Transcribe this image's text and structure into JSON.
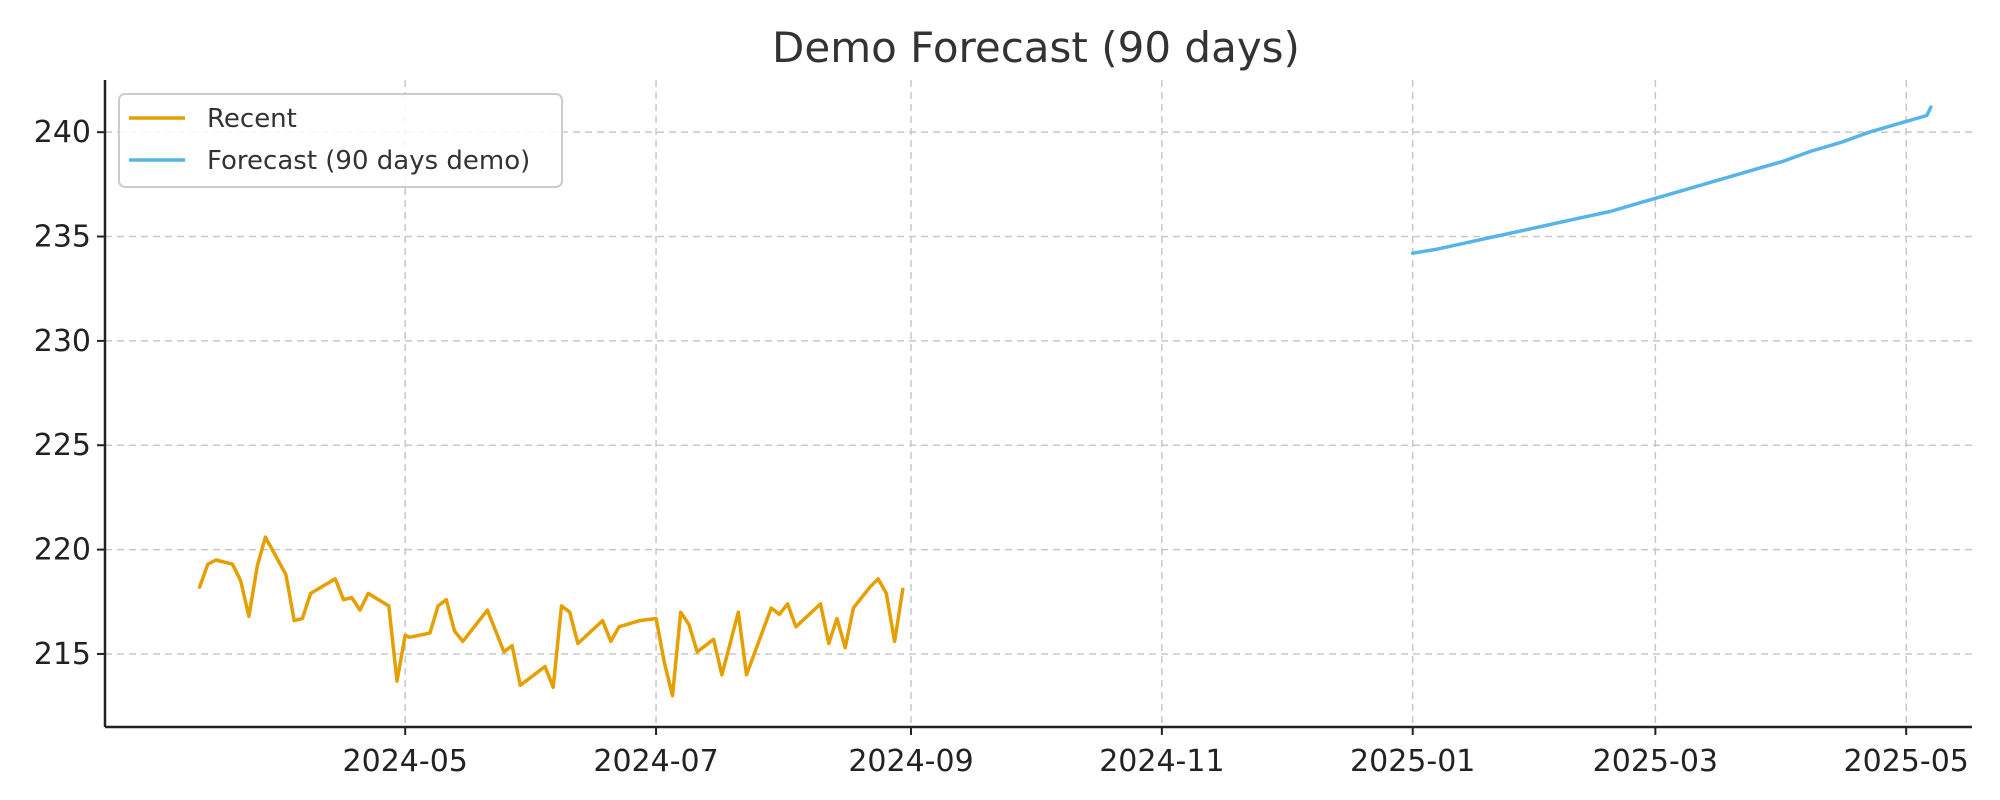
{
  "chart_data": {
    "type": "line",
    "title": "Demo Forecast (90 days)",
    "xlabel": "",
    "ylabel": "",
    "x_range": [
      "2024-02-18",
      "2025-05-17"
    ],
    "ylim": [
      211.5,
      242.5
    ],
    "grid": true,
    "legend_position": "top-left",
    "x_ticks": [
      {
        "date": "2024-05-01",
        "label": "2024-05"
      },
      {
        "date": "2024-07-01",
        "label": "2024-07"
      },
      {
        "date": "2024-09-01",
        "label": "2024-09"
      },
      {
        "date": "2024-11-01",
        "label": "2024-11"
      },
      {
        "date": "2025-01-01",
        "label": "2025-01"
      },
      {
        "date": "2025-03-01",
        "label": "2025-03"
      },
      {
        "date": "2025-05-01",
        "label": "2025-05"
      }
    ],
    "y_ticks": [
      215,
      220,
      225,
      230,
      235,
      240
    ],
    "series": [
      {
        "name": "Recent",
        "color": "#E69F00",
        "points": [
          [
            "2024-03-12",
            218.2
          ],
          [
            "2024-03-14",
            219.3
          ],
          [
            "2024-03-16",
            219.5
          ],
          [
            "2024-03-20",
            219.3
          ],
          [
            "2024-03-22",
            218.5
          ],
          [
            "2024-03-24",
            216.8
          ],
          [
            "2024-03-26",
            219.2
          ],
          [
            "2024-03-28",
            220.6
          ],
          [
            "2024-04-02",
            218.8
          ],
          [
            "2024-04-04",
            216.6
          ],
          [
            "2024-04-06",
            216.7
          ],
          [
            "2024-04-08",
            217.9
          ],
          [
            "2024-04-14",
            218.6
          ],
          [
            "2024-04-16",
            217.6
          ],
          [
            "2024-04-18",
            217.7
          ],
          [
            "2024-04-20",
            217.1
          ],
          [
            "2024-04-22",
            217.9
          ],
          [
            "2024-04-27",
            217.3
          ],
          [
            "2024-04-29",
            213.7
          ],
          [
            "2024-05-01",
            215.9
          ],
          [
            "2024-05-02",
            215.8
          ],
          [
            "2024-05-07",
            216.0
          ],
          [
            "2024-05-09",
            217.3
          ],
          [
            "2024-05-11",
            217.6
          ],
          [
            "2024-05-13",
            216.1
          ],
          [
            "2024-05-15",
            215.6
          ],
          [
            "2024-05-21",
            217.1
          ],
          [
            "2024-05-23",
            216.1
          ],
          [
            "2024-05-25",
            215.1
          ],
          [
            "2024-05-27",
            215.4
          ],
          [
            "2024-05-29",
            213.5
          ],
          [
            "2024-06-04",
            214.4
          ],
          [
            "2024-06-06",
            213.4
          ],
          [
            "2024-06-08",
            217.3
          ],
          [
            "2024-06-10",
            217.0
          ],
          [
            "2024-06-12",
            215.5
          ],
          [
            "2024-06-18",
            216.6
          ],
          [
            "2024-06-20",
            215.6
          ],
          [
            "2024-06-22",
            216.3
          ],
          [
            "2024-06-27",
            216.6
          ],
          [
            "2024-07-03",
            214.6
          ],
          [
            "2024-07-05",
            213.0
          ],
          [
            "2024-07-07",
            217.0
          ],
          [
            "2024-07-09",
            216.4
          ],
          [
            "2024-07-11",
            215.1
          ],
          [
            "2024-07-15",
            215.7
          ],
          [
            "2024-07-17",
            214.0
          ],
          [
            "2024-07-21",
            217.0
          ],
          [
            "2024-07-23",
            214.0
          ],
          [
            "2024-07-29",
            217.2
          ],
          [
            "2024-07-31",
            216.9
          ],
          [
            "2024-08-02",
            217.4
          ],
          [
            "2024-08-04",
            216.3
          ],
          [
            "2024-08-10",
            217.4
          ],
          [
            "2024-08-12",
            215.5
          ],
          [
            "2024-08-14",
            216.7
          ],
          [
            "2024-08-16",
            215.3
          ],
          [
            "2024-08-18",
            217.2
          ],
          [
            "2024-08-22",
            218.2
          ],
          [
            "2024-08-24",
            218.6
          ],
          [
            "2024-08-26",
            217.9
          ],
          [
            "2024-08-28",
            215.6
          ],
          [
            "2024-08-30",
            218.1
          ],
          [
            "2024-07-01",
            216.7
          ]
        ]
      },
      {
        "name": "Forecast (90 days demo)",
        "color": "#56B4E9",
        "points": [
          [
            "2025-01-01",
            234.2
          ],
          [
            "2025-01-07",
            234.4
          ],
          [
            "2025-01-14",
            234.7
          ],
          [
            "2025-01-21",
            235.0
          ],
          [
            "2025-01-28",
            235.3
          ],
          [
            "2025-02-04",
            235.6
          ],
          [
            "2025-02-11",
            235.9
          ],
          [
            "2025-02-18",
            236.2
          ],
          [
            "2025-02-25",
            236.6
          ],
          [
            "2025-03-04",
            237.0
          ],
          [
            "2025-03-11",
            237.4
          ],
          [
            "2025-03-18",
            237.8
          ],
          [
            "2025-03-25",
            238.2
          ],
          [
            "2025-04-01",
            238.6
          ],
          [
            "2025-04-08",
            239.1
          ],
          [
            "2025-04-15",
            239.5
          ],
          [
            "2025-04-22",
            240.0
          ],
          [
            "2025-04-29",
            240.4
          ],
          [
            "2025-05-06",
            240.8
          ],
          [
            "2025-05-07",
            241.2
          ]
        ]
      }
    ]
  }
}
